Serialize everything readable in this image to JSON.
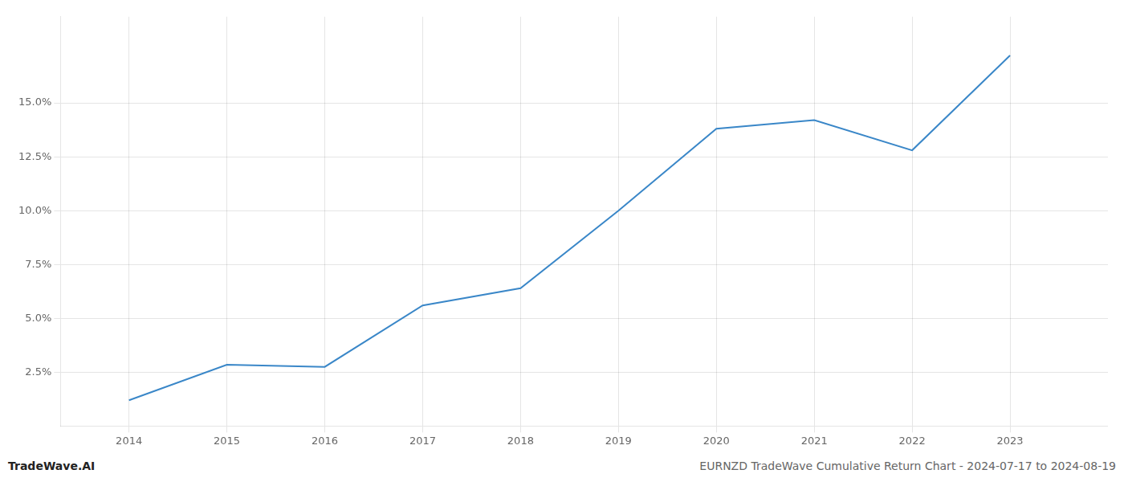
{
  "chart_data": {
    "type": "line",
    "x": [
      2014,
      2015,
      2016,
      2017,
      2018,
      2019,
      2020,
      2021,
      2022,
      2023
    ],
    "values": [
      1.2,
      2.85,
      2.75,
      5.6,
      6.4,
      10.0,
      13.8,
      14.2,
      12.8,
      17.2
    ],
    "color": "#3a87c8",
    "xlim": [
      2013.3,
      2024.0
    ],
    "xticks": [
      2014,
      2015,
      2016,
      2017,
      2018,
      2019,
      2020,
      2021,
      2022,
      2023
    ],
    "ylim": [
      0.0,
      19.0
    ],
    "yticks": [
      {
        "value": 2.5,
        "label": "2.5%"
      },
      {
        "value": 5.0,
        "label": "5.0%"
      },
      {
        "value": 7.5,
        "label": "7.5%"
      },
      {
        "value": 10.0,
        "label": "10.0%"
      },
      {
        "value": 12.5,
        "label": "12.5%"
      },
      {
        "value": 15.0,
        "label": "15.0%"
      }
    ],
    "grid": true,
    "annotations": [
      "TradeWave.AI",
      "EURNZD TradeWave Cumulative Return Chart - 2024-07-17 to 2024-08-19"
    ]
  }
}
